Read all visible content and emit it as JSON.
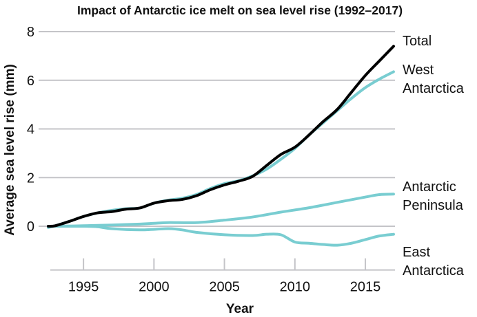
{
  "chart_data": {
    "type": "line",
    "title": "Impact of Antarctic ice melt on sea level rise (1992–2017)",
    "xlabel": "Year",
    "ylabel": "Average sea level rise (mm)",
    "xlim": [
      1992.5,
      2017.1
    ],
    "ylim": [
      -1.8,
      8
    ],
    "xticks": [
      1995,
      2000,
      2005,
      2010,
      2015
    ],
    "yticks": [
      0,
      2,
      4,
      6,
      8
    ],
    "grid": "horizontal",
    "legend": "labels at line ends (right)",
    "series": [
      {
        "name": "Total",
        "label_lines": [
          "Total"
        ],
        "color": "#000000",
        "x": [
          1992.5,
          1993,
          1994,
          1995,
          1996,
          1997,
          1998,
          1999,
          2000,
          2001,
          2002,
          2003,
          2004,
          2005,
          2006,
          2007,
          2008,
          2009,
          2010,
          2011,
          2012,
          2013,
          2014,
          2015,
          2016,
          2017
        ],
        "y": [
          0,
          0.02,
          0.2,
          0.4,
          0.55,
          0.6,
          0.7,
          0.75,
          0.95,
          1.05,
          1.1,
          1.25,
          1.5,
          1.7,
          1.85,
          2.05,
          2.5,
          2.95,
          3.25,
          3.75,
          4.3,
          4.8,
          5.5,
          6.2,
          6.8,
          7.4
        ]
      },
      {
        "name": "West Antarctica",
        "label_lines": [
          "West",
          "Antarctica"
        ],
        "color": "#79cdd1",
        "x": [
          1992.5,
          1993,
          1994,
          1995,
          1996,
          1997,
          1998,
          1999,
          2000,
          2001,
          2002,
          2003,
          2004,
          2005,
          2006,
          2007,
          2008,
          2009,
          2010,
          2011,
          2012,
          2013,
          2014,
          2015,
          2016,
          2017
        ],
        "y": [
          -0.05,
          0.02,
          0.2,
          0.4,
          0.55,
          0.65,
          0.72,
          0.75,
          0.95,
          1.07,
          1.15,
          1.3,
          1.55,
          1.75,
          1.87,
          2.07,
          2.35,
          2.75,
          3.2,
          3.75,
          4.25,
          4.75,
          5.25,
          5.7,
          6.05,
          6.35
        ]
      },
      {
        "name": "Antarctic Peninsula",
        "label_lines": [
          "Antarctic",
          "Peninsula"
        ],
        "color": "#79cdd1",
        "x": [
          1992.5,
          1993,
          1995,
          1997,
          1999,
          2000,
          2001,
          2003,
          2005,
          2007,
          2009,
          2011,
          2013,
          2015,
          2016,
          2017
        ],
        "y": [
          0,
          0,
          0.02,
          0.05,
          0.09,
          0.12,
          0.15,
          0.15,
          0.25,
          0.38,
          0.58,
          0.76,
          0.98,
          1.2,
          1.3,
          1.32
        ]
      },
      {
        "name": "East Antarctica",
        "label_lines": [
          "East",
          "Antarctica"
        ],
        "color": "#79cdd1",
        "x": [
          1992.5,
          1993,
          1995,
          1996,
          1997,
          1999,
          2001,
          2002,
          2003,
          2005,
          2007,
          2008,
          2009,
          2010,
          2011,
          2012,
          2013,
          2014,
          2015,
          2016,
          2017
        ],
        "y": [
          0,
          0,
          0,
          -0.02,
          -0.1,
          -0.15,
          -0.1,
          -0.15,
          -0.25,
          -0.35,
          -0.38,
          -0.33,
          -0.35,
          -0.65,
          -0.7,
          -0.75,
          -0.78,
          -0.7,
          -0.55,
          -0.4,
          -0.33
        ]
      }
    ]
  }
}
